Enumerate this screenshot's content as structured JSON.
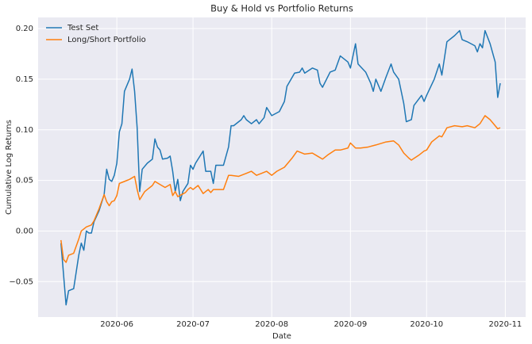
{
  "chart_data": {
    "type": "line",
    "title": "Buy & Hold vs Portfolio Returns",
    "x_label": "Date",
    "y_label": "Cumulative Log Returns",
    "grid": true,
    "legend": "upper left",
    "xlim": [
      "2020-05-01",
      "2020-11-09"
    ],
    "xticks": [
      {
        "value": "2020-06-01",
        "label": "2020-06"
      },
      {
        "value": "2020-07-01",
        "label": "2020-07"
      },
      {
        "value": "2020-08-01",
        "label": "2020-08"
      },
      {
        "value": "2020-09-01",
        "label": "2020-09"
      },
      {
        "value": "2020-10-01",
        "label": "2020-10"
      },
      {
        "value": "2020-11-01",
        "label": "2020-11"
      }
    ],
    "ylim": [
      -0.085,
      0.211
    ],
    "yticks": [
      {
        "value": -0.05,
        "label": "−0.05"
      },
      {
        "value": 0,
        "label": "0.00"
      },
      {
        "value": 0.05,
        "label": "0.05"
      },
      {
        "value": 0.1,
        "label": "0.10"
      },
      {
        "value": 0.15,
        "label": "0.15"
      },
      {
        "value": 0.2,
        "label": "0.20"
      }
    ],
    "series": [
      {
        "name": "Test Set",
        "color": "#1f77b4",
        "x": [
          "2020-05-10",
          "2020-05-12",
          "2020-05-13",
          "2020-05-15",
          "2020-05-17",
          "2020-05-18",
          "2020-05-19",
          "2020-05-20",
          "2020-05-21",
          "2020-05-22",
          "2020-05-23",
          "2020-05-25",
          "2020-05-27",
          "2020-05-28",
          "2020-05-29",
          "2020-05-30",
          "2020-05-31",
          "2020-06-01",
          "2020-06-02",
          "2020-06-03",
          "2020-06-04",
          "2020-06-06",
          "2020-06-07",
          "2020-06-08",
          "2020-06-09",
          "2020-06-10",
          "2020-06-11",
          "2020-06-13",
          "2020-06-15",
          "2020-06-16",
          "2020-06-17",
          "2020-06-18",
          "2020-06-19",
          "2020-06-21",
          "2020-06-22",
          "2020-06-23",
          "2020-06-24",
          "2020-06-25",
          "2020-06-26",
          "2020-06-27",
          "2020-06-29",
          "2020-06-30",
          "2020-07-01",
          "2020-07-02",
          "2020-07-05",
          "2020-07-06",
          "2020-07-08",
          "2020-07-09",
          "2020-07-10",
          "2020-07-13",
          "2020-07-15",
          "2020-07-16",
          "2020-07-17",
          "2020-07-20",
          "2020-07-21",
          "2020-07-22",
          "2020-07-24",
          "2020-07-26",
          "2020-07-27",
          "2020-07-29",
          "2020-07-30",
          "2020-07-31",
          "2020-08-01",
          "2020-08-04",
          "2020-08-06",
          "2020-08-07",
          "2020-08-10",
          "2020-08-12",
          "2020-08-13",
          "2020-08-14",
          "2020-08-17",
          "2020-08-19",
          "2020-08-20",
          "2020-08-21",
          "2020-08-24",
          "2020-08-26",
          "2020-08-28",
          "2020-08-31",
          "2020-09-01",
          "2020-09-03",
          "2020-09-04",
          "2020-09-07",
          "2020-09-09",
          "2020-09-10",
          "2020-09-11",
          "2020-09-13",
          "2020-09-15",
          "2020-09-17",
          "2020-09-18",
          "2020-09-20",
          "2020-09-22",
          "2020-09-23",
          "2020-09-25",
          "2020-09-26",
          "2020-09-29",
          "2020-09-30",
          "2020-10-01",
          "2020-10-04",
          "2020-10-06",
          "2020-10-07",
          "2020-10-09",
          "2020-10-12",
          "2020-10-14",
          "2020-10-15",
          "2020-10-17",
          "2020-10-20",
          "2020-10-21",
          "2020-10-22",
          "2020-10-23",
          "2020-10-24",
          "2020-10-26",
          "2020-10-28",
          "2020-10-29",
          "2020-10-30"
        ],
        "values": [
          -0.012,
          -0.073,
          -0.059,
          -0.057,
          -0.024,
          -0.012,
          -0.019,
          0,
          -0.002,
          -0.002,
          0.009,
          0.02,
          0.036,
          0.061,
          0.051,
          0.049,
          0.055,
          0.067,
          0.098,
          0.106,
          0.138,
          0.15,
          0.16,
          0.138,
          0.102,
          0.039,
          0.061,
          0.067,
          0.071,
          0.091,
          0.083,
          0.08,
          0.071,
          0.072,
          0.074,
          0.059,
          0.039,
          0.051,
          0.03,
          0.039,
          0.047,
          0.065,
          0.061,
          0.067,
          0.079,
          0.059,
          0.059,
          0.047,
          0.065,
          0.065,
          0.083,
          0.104,
          0.104,
          0.11,
          0.114,
          0.11,
          0.106,
          0.11,
          0.106,
          0.112,
          0.122,
          0.118,
          0.114,
          0.118,
          0.128,
          0.143,
          0.156,
          0.157,
          0.161,
          0.156,
          0.161,
          0.159,
          0.146,
          0.142,
          0.157,
          0.159,
          0.173,
          0.167,
          0.161,
          0.185,
          0.165,
          0.157,
          0.146,
          0.138,
          0.15,
          0.138,
          0.152,
          0.165,
          0.157,
          0.15,
          0.126,
          0.108,
          0.11,
          0.124,
          0.134,
          0.128,
          0.134,
          0.15,
          0.165,
          0.154,
          0.187,
          0.193,
          0.198,
          0.189,
          0.187,
          0.183,
          0.177,
          0.185,
          0.181,
          0.198,
          0.185,
          0.167,
          0.132,
          0.146
        ]
      },
      {
        "name": "Long/Short Portfolio",
        "color": "#ff7f0e",
        "x": [
          "2020-05-10",
          "2020-05-11",
          "2020-05-12",
          "2020-05-13",
          "2020-05-15",
          "2020-05-17",
          "2020-05-18",
          "2020-05-20",
          "2020-05-22",
          "2020-05-23",
          "2020-05-25",
          "2020-05-27",
          "2020-05-28",
          "2020-05-29",
          "2020-05-30",
          "2020-05-31",
          "2020-06-01",
          "2020-06-02",
          "2020-06-04",
          "2020-06-06",
          "2020-06-08",
          "2020-06-09",
          "2020-06-10",
          "2020-06-12",
          "2020-06-13",
          "2020-06-15",
          "2020-06-16",
          "2020-06-18",
          "2020-06-20",
          "2020-06-22",
          "2020-06-23",
          "2020-06-24",
          "2020-06-25",
          "2020-06-28",
          "2020-06-29",
          "2020-06-30",
          "2020-07-01",
          "2020-07-03",
          "2020-07-05",
          "2020-07-07",
          "2020-07-08",
          "2020-07-09",
          "2020-07-13",
          "2020-07-15",
          "2020-07-16",
          "2020-07-19",
          "2020-07-22",
          "2020-07-24",
          "2020-07-26",
          "2020-07-28",
          "2020-07-30",
          "2020-08-01",
          "2020-08-03",
          "2020-08-06",
          "2020-08-09",
          "2020-08-11",
          "2020-08-14",
          "2020-08-17",
          "2020-08-19",
          "2020-08-21",
          "2020-08-23",
          "2020-08-26",
          "2020-08-28",
          "2020-08-31",
          "2020-09-01",
          "2020-09-03",
          "2020-09-05",
          "2020-09-08",
          "2020-09-11",
          "2020-09-15",
          "2020-09-18",
          "2020-09-20",
          "2020-09-22",
          "2020-09-24",
          "2020-09-25",
          "2020-09-28",
          "2020-09-30",
          "2020-10-01",
          "2020-10-03",
          "2020-10-06",
          "2020-10-07",
          "2020-10-09",
          "2020-10-12",
          "2020-10-15",
          "2020-10-17",
          "2020-10-20",
          "2020-10-22",
          "2020-10-24",
          "2020-10-26",
          "2020-10-28",
          "2020-10-29",
          "2020-10-30"
        ],
        "values": [
          -0.009,
          -0.028,
          -0.031,
          -0.024,
          -0.022,
          -0.008,
          0,
          0.004,
          0.006,
          0.01,
          0.022,
          0.036,
          0.029,
          0.025,
          0.029,
          0.03,
          0.035,
          0.047,
          0.049,
          0.051,
          0.054,
          0.041,
          0.031,
          0.039,
          0.041,
          0.045,
          0.049,
          0.046,
          0.043,
          0.046,
          0.035,
          0.039,
          0.034,
          0.038,
          0.041,
          0.043,
          0.041,
          0.045,
          0.037,
          0.041,
          0.038,
          0.041,
          0.041,
          0.055,
          0.055,
          0.054,
          0.057,
          0.059,
          0.055,
          0.057,
          0.059,
          0.055,
          0.059,
          0.063,
          0.072,
          0.079,
          0.076,
          0.077,
          0.074,
          0.071,
          0.075,
          0.08,
          0.08,
          0.082,
          0.087,
          0.082,
          0.082,
          0.083,
          0.085,
          0.088,
          0.089,
          0.085,
          0.077,
          0.072,
          0.07,
          0.075,
          0.079,
          0.08,
          0.088,
          0.094,
          0.093,
          0.102,
          0.104,
          0.103,
          0.104,
          0.102,
          0.106,
          0.114,
          0.11,
          0.104,
          0.101,
          0.102
        ]
      }
    ]
  }
}
